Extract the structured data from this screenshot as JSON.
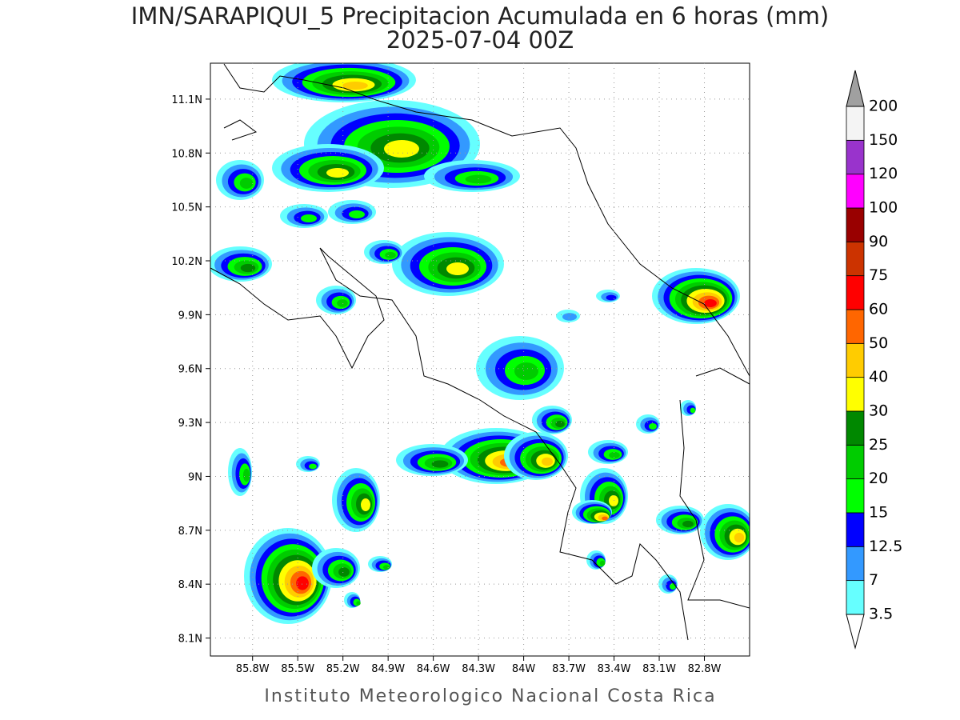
{
  "title": "IMN/SARAPIQUI_5 Precipitacion Acumulada en 6 horas (mm)",
  "subtitle": "2025-07-04 00Z",
  "footer": "Instituto Meteorologico Nacional Costa Rica",
  "map": {
    "xlim": [
      -86.08,
      -82.5
    ],
    "ylim": [
      8.0,
      11.3
    ],
    "xticks": [
      {
        "value": -85.8,
        "label": "85.8W"
      },
      {
        "value": -85.5,
        "label": "85.5W"
      },
      {
        "value": -85.2,
        "label": "85.2W"
      },
      {
        "value": -84.9,
        "label": "84.9W"
      },
      {
        "value": -84.6,
        "label": "84.6W"
      },
      {
        "value": -84.3,
        "label": "84.3W"
      },
      {
        "value": -84.0,
        "label": "84W"
      },
      {
        "value": -83.7,
        "label": "83.7W"
      },
      {
        "value": -83.4,
        "label": "83.4W"
      },
      {
        "value": -83.1,
        "label": "83.1W"
      },
      {
        "value": -82.8,
        "label": "82.8W"
      }
    ],
    "yticks": [
      {
        "value": 8.1,
        "label": "8.1N"
      },
      {
        "value": 8.4,
        "label": "8.4N"
      },
      {
        "value": 8.7,
        "label": "8.7N"
      },
      {
        "value": 9.0,
        "label": "9N"
      },
      {
        "value": 9.3,
        "label": "9.3N"
      },
      {
        "value": 9.6,
        "label": "9.6N"
      },
      {
        "value": 9.9,
        "label": "9.9N"
      },
      {
        "value": 10.2,
        "label": "10.2N"
      },
      {
        "value": 10.5,
        "label": "10.5N"
      },
      {
        "value": 10.8,
        "label": "10.8N"
      },
      {
        "value": 11.1,
        "label": "11.1N"
      }
    ],
    "grid": true
  },
  "colorbar": {
    "levels": [
      3.5,
      7,
      12.5,
      15,
      20,
      25,
      30,
      40,
      50,
      60,
      75,
      90,
      100,
      120,
      150,
      200
    ],
    "colors": [
      "#66ffff",
      "#3399ff",
      "#0000ff",
      "#00ff00",
      "#00cc00",
      "#008800",
      "#ffff00",
      "#ffcc00",
      "#ff6600",
      "#ff0000",
      "#cc3300",
      "#990000",
      "#ff00ff",
      "#9933cc",
      "#f4f4f4"
    ],
    "below_color": "#ffffff",
    "above_color": "#a0a0a0"
  }
}
